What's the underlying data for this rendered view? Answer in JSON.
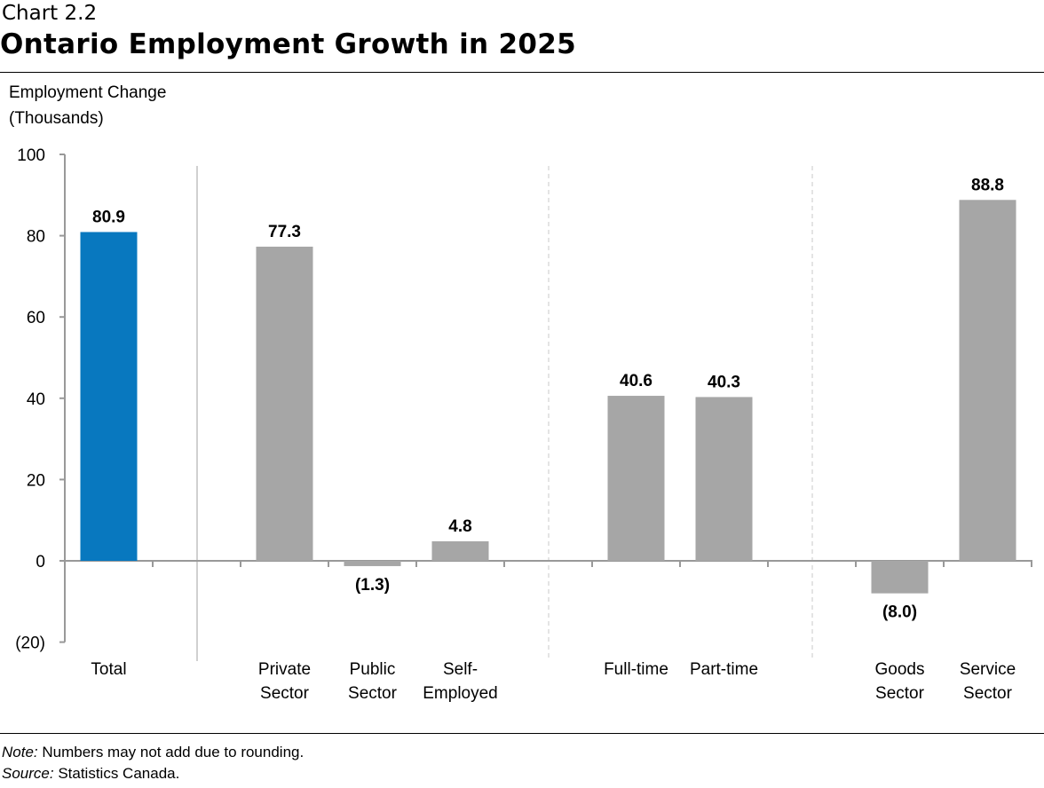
{
  "header": {
    "chart_number": "Chart 2.2",
    "title": "Ontario Employment Growth in 2025"
  },
  "footer": {
    "note_label": "Note:",
    "note_text": " Numbers may not add due to rounding.",
    "source_label": "Source:",
    "source_text": " Statistics Canada."
  },
  "chart_data": {
    "type": "bar",
    "title": "Ontario Employment Growth in 2025",
    "ylabel_line1": "Employment Change",
    "ylabel_line2": "(Thousands)",
    "ylim": [
      -20,
      100
    ],
    "yticks": [
      -20,
      0,
      20,
      40,
      60,
      80,
      100
    ],
    "ytick_labels": [
      "(20)",
      "0",
      "20",
      "40",
      "60",
      "80",
      "100"
    ],
    "grid": false,
    "categories": [
      [
        "Total"
      ],
      [
        "Private",
        "Sector"
      ],
      [
        "Public",
        "Sector"
      ],
      [
        "Self-",
        "Employed"
      ],
      [
        "Full-time"
      ],
      [
        "Part-time"
      ],
      [
        "Goods",
        "Sector"
      ],
      [
        "Service",
        "Sector"
      ]
    ],
    "values": [
      80.9,
      77.3,
      -1.3,
      4.8,
      40.6,
      40.3,
      -8.0,
      88.8
    ],
    "data_labels": [
      "80.9",
      "77.3",
      "(1.3)",
      "4.8",
      "40.6",
      "40.3",
      "(8.0)",
      "88.8"
    ],
    "colors": [
      "#0878bf",
      "#a6a6a6",
      "#a6a6a6",
      "#a6a6a6",
      "#a6a6a6",
      "#a6a6a6",
      "#a6a6a6",
      "#a6a6a6"
    ]
  }
}
